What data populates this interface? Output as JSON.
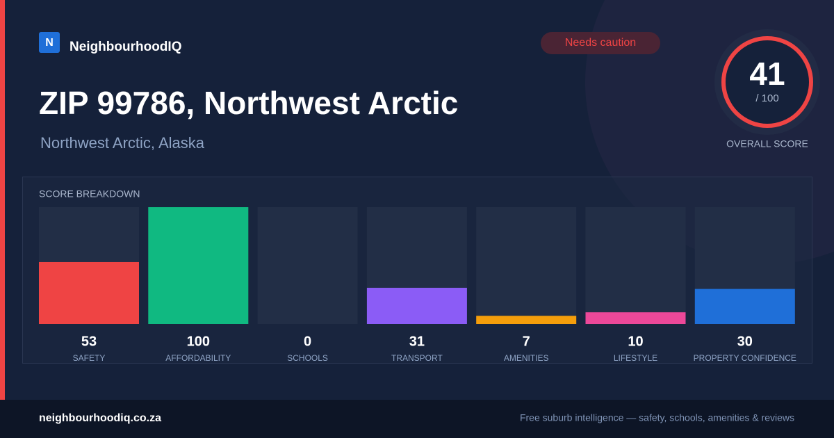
{
  "brand": {
    "logo": "N",
    "name": "NeighbourhoodIQ"
  },
  "badge": "Needs caution",
  "header": {
    "title": "ZIP 99786, Northwest Arctic",
    "subtitle": "Northwest Arctic, Alaska"
  },
  "overall": {
    "score": "41",
    "max": "/ 100",
    "label": "OVERALL SCORE"
  },
  "chart_data": {
    "type": "bar",
    "title": "SCORE BREAKDOWN",
    "categories": [
      "SAFETY",
      "AFFORDABILITY",
      "SCHOOLS",
      "TRANSPORT",
      "AMENITIES",
      "LIFESTYLE",
      "PROPERTY CONFIDENCE"
    ],
    "values": [
      53,
      100,
      0,
      31,
      7,
      10,
      30
    ],
    "colors": [
      "#ef4444",
      "#10b981",
      "#3b82f6",
      "#8b5cf6",
      "#f59e0b",
      "#ec4899",
      "#1f6fd8"
    ],
    "ylim": [
      0,
      100
    ]
  },
  "footer": {
    "site": "neighbourhoodiq.co.za",
    "tagline": "Free suburb intelligence — safety, schools, amenities & reviews"
  }
}
